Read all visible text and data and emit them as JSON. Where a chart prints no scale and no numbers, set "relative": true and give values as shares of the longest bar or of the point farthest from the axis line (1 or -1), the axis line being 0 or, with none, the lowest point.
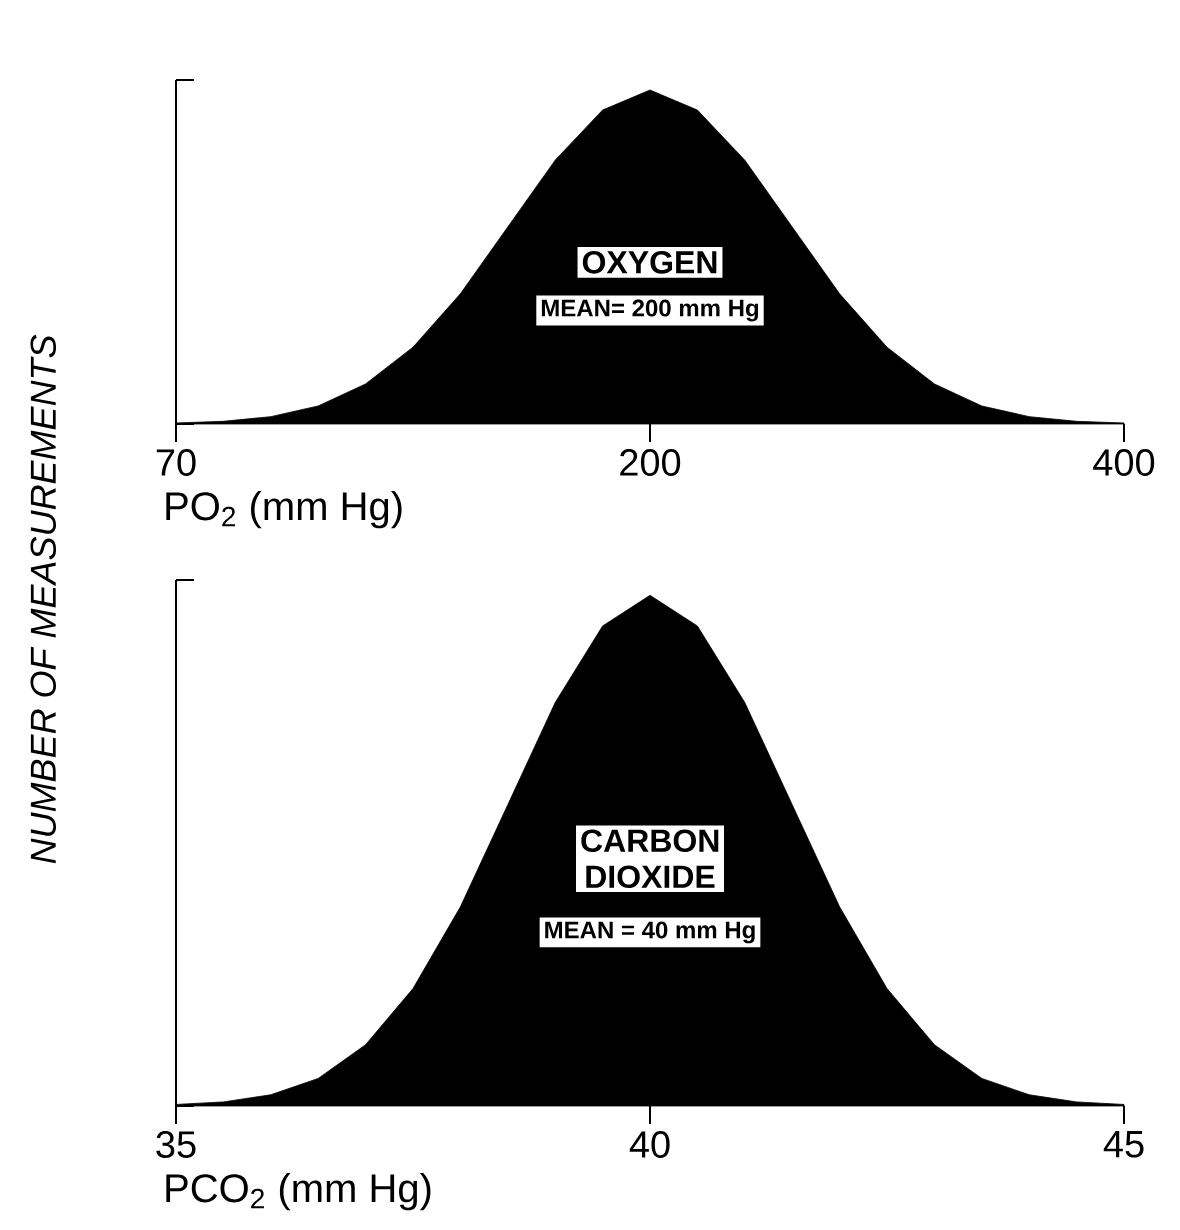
{
  "chart_data": [
    {
      "type": "area",
      "relative": true,
      "color": "#000000",
      "xlabel": "PO$_{2}$ (mm Hg)",
      "ylabel": "NUMBER OF MEASUREMENTS",
      "categories": [
        "70",
        null,
        null,
        null,
        null,
        null,
        null,
        null,
        null,
        null,
        "200",
        null,
        null,
        null,
        null,
        null,
        null,
        null,
        null,
        null,
        "400"
      ],
      "values": [
        0.003,
        0.008,
        0.022,
        0.054,
        0.12,
        0.23,
        0.39,
        0.59,
        0.79,
        0.94,
        1,
        0.94,
        0.79,
        0.59,
        0.39,
        0.23,
        0.12,
        0.054,
        0.022,
        0.008,
        0.003
      ],
      "annotations": [
        "OXYGEN",
        "MEAN= 200 mm Hg"
      ]
    },
    {
      "type": "area",
      "relative": true,
      "color": "#000000",
      "xlabel": "PCO$_{2}$ (mm Hg)",
      "x": [
        35,
        35.5,
        36,
        36.5,
        37,
        37.5,
        38,
        38.5,
        39,
        39.5,
        40,
        40.5,
        41,
        41.5,
        42,
        42.5,
        43,
        43.5,
        44,
        44.5,
        45
      ],
      "xlim": [
        35,
        45
      ],
      "xticks": [
        35,
        40,
        45
      ],
      "values": [
        0.003,
        0.008,
        0.022,
        0.054,
        0.12,
        0.23,
        0.39,
        0.59,
        0.79,
        0.94,
        1,
        0.94,
        0.79,
        0.59,
        0.39,
        0.23,
        0.12,
        0.054,
        0.022,
        0.008,
        0.003
      ],
      "annotations": [
        "CARBON DIOXIDE",
        "MEAN = 40 mm Hg"
      ]
    }
  ]
}
